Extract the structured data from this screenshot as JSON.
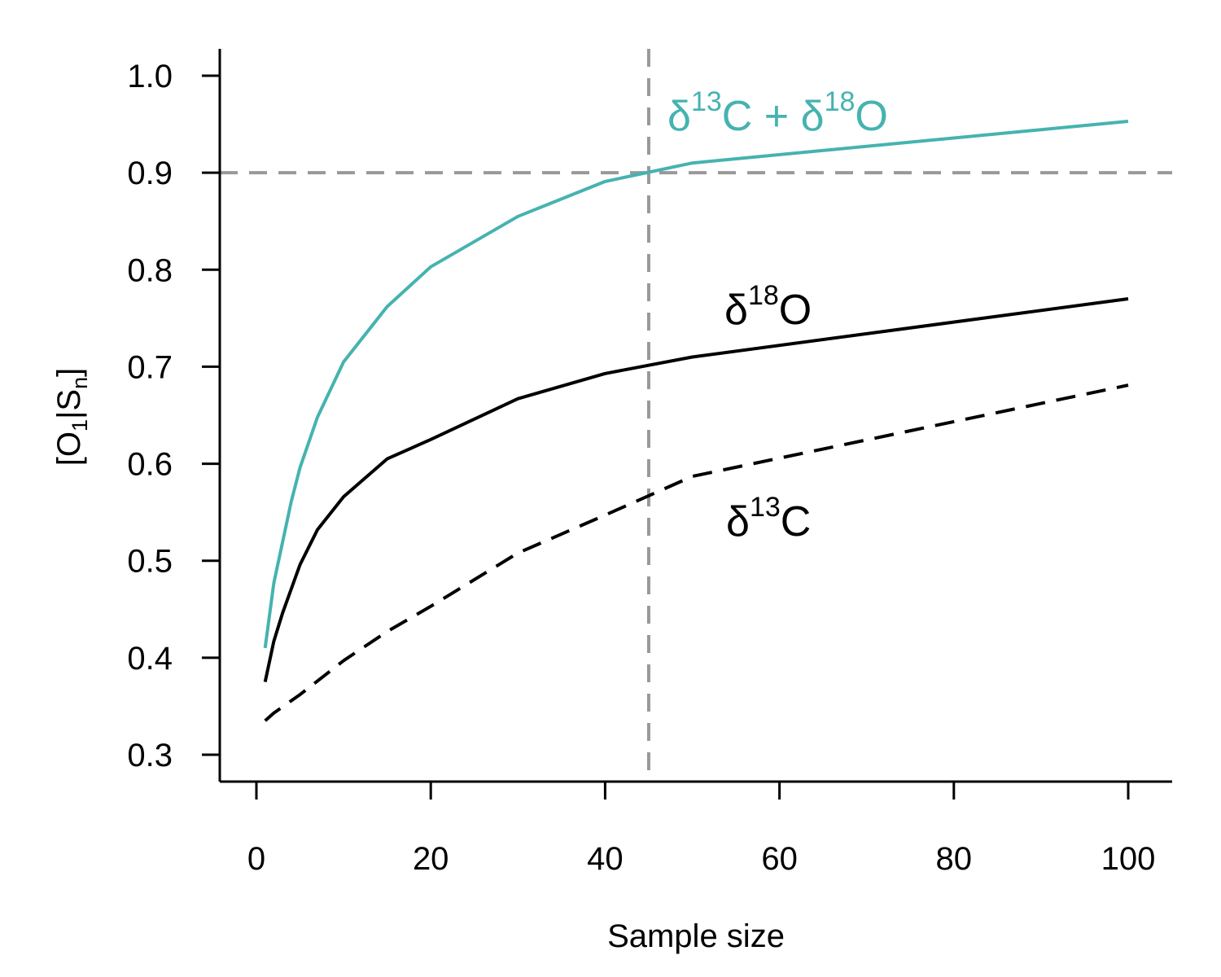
{
  "chart_data": {
    "type": "line",
    "xlabel": "Sample size",
    "ylabel": {
      "open": "[O",
      "sub1": "1",
      "mid": "|S",
      "sub2": "n",
      "close": "]"
    },
    "xlim": [
      0,
      105
    ],
    "ylim": [
      0.28,
      1.03
    ],
    "xticks": [
      0,
      20,
      40,
      60,
      80,
      100
    ],
    "yticks": [
      "0.3",
      "0.4",
      "0.5",
      "0.6",
      "0.7",
      "0.8",
      "0.9",
      "1.0"
    ],
    "grid": false,
    "reference_lines": {
      "horizontal_y": 0.9,
      "vertical_x": 45,
      "color": "#999999"
    },
    "series": [
      {
        "label": {
          "d1": "δ",
          "s1": "13",
          "b1": "C",
          "plus": " + ",
          "d2": "δ",
          "s2": "18",
          "b2": "O"
        },
        "color": "#45b3b0",
        "dash": false,
        "x": [
          1,
          2,
          4,
          5,
          7,
          10,
          15,
          20,
          30,
          40,
          50,
          100
        ],
        "y": [
          0.41,
          0.477,
          0.561,
          0.596,
          0.648,
          0.705,
          0.762,
          0.803,
          0.855,
          0.891,
          0.91,
          0.953
        ]
      },
      {
        "label": {
          "d1": "δ",
          "s1": "18",
          "b1": "O"
        },
        "color": "#000000",
        "dash": false,
        "x": [
          1,
          2,
          3,
          5,
          7,
          10,
          15,
          20,
          30,
          40,
          50,
          100
        ],
        "y": [
          0.375,
          0.417,
          0.446,
          0.496,
          0.532,
          0.566,
          0.605,
          0.625,
          0.667,
          0.693,
          0.71,
          0.77
        ]
      },
      {
        "label": {
          "d1": "δ",
          "s1": "13",
          "b1": "C"
        },
        "color": "#000000",
        "dash": true,
        "x": [
          1,
          2,
          5,
          10,
          15,
          20,
          30,
          40,
          50,
          100
        ],
        "y": [
          0.335,
          0.343,
          0.362,
          0.397,
          0.427,
          0.453,
          0.508,
          0.547,
          0.587,
          0.681
        ]
      }
    ]
  }
}
